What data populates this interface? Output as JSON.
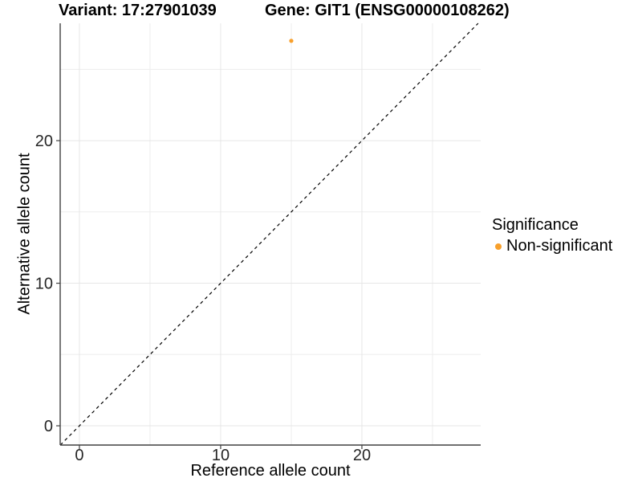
{
  "chart_data": {
    "type": "scatter",
    "title_left": "Variant: 17:27901039",
    "title_right": "Gene: GIT1 (ENSG00000108262)",
    "xlabel": "Reference allele count",
    "ylabel": "Alternative allele count",
    "xlim": [
      -1.36,
      28.41
    ],
    "ylim": [
      -1.35,
      28.23
    ],
    "x_major_ticks": [
      0,
      10,
      20
    ],
    "x_minor_ticks": [
      5,
      15,
      25
    ],
    "y_major_ticks": [
      0,
      10,
      20
    ],
    "y_minor_ticks": [
      5,
      15,
      25
    ],
    "grid": true,
    "points": [
      {
        "x": 15,
        "y": 27,
        "series": "Non-significant"
      }
    ],
    "abline": {
      "slope": 1,
      "intercept": 0,
      "style": "dashed",
      "color": "#000000"
    },
    "legend": {
      "title": "Significance",
      "position": "right",
      "items": [
        {
          "label": "Non-significant",
          "color": "#F8A02C"
        }
      ]
    },
    "colors": {
      "point": "#F8A02C",
      "grid_major": "#E6E6E6",
      "grid_minor": "#EDEDED",
      "axis_line": "#404040",
      "tick_text": "#262626"
    }
  }
}
